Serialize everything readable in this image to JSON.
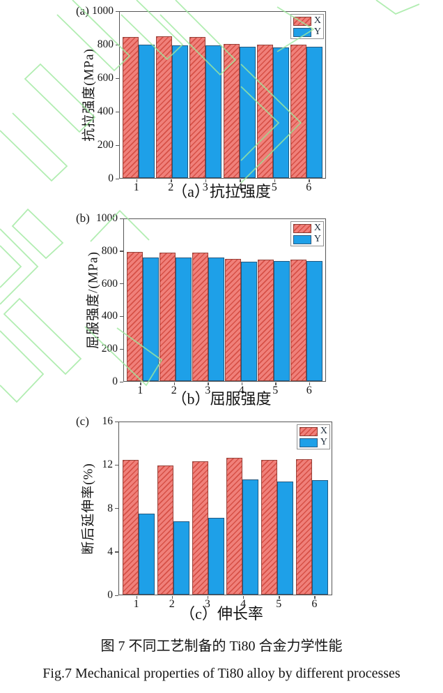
{
  "figure": {
    "caption_cn": "图 7 不同工艺制备的 Ti80 合金力学性能",
    "caption_en": "Fig.7 Mechanical properties of Ti80 alloy by different processes"
  },
  "colors": {
    "series_x_fill": "#f0807a",
    "series_x_hatch": "#d65046",
    "series_y_fill": "#1ea0e8",
    "axis_color": "#565656",
    "text_color": "#141414",
    "watermark_green": "#9ee89e"
  },
  "chart_data": [
    {
      "type": "bar",
      "panel_label": "(a)",
      "subcaption": "（a）抗拉强度",
      "ylabel": "抗拉强度(MPa)",
      "xlabel": "",
      "ylim": [
        0,
        1000
      ],
      "yticks": [
        0,
        200,
        400,
        600,
        800,
        1000
      ],
      "categories": [
        "1",
        "2",
        "3",
        "4",
        "5",
        "6"
      ],
      "grid": false,
      "legend_position": "top-right",
      "legend": [
        "X",
        "Y"
      ],
      "series": [
        {
          "name": "X",
          "values": [
            849,
            852,
            847,
            805,
            802,
            802
          ]
        },
        {
          "name": "Y",
          "values": [
            801,
            800,
            797,
            789,
            787,
            788
          ]
        }
      ]
    },
    {
      "type": "bar",
      "panel_label": "(b)",
      "subcaption": "（b）屈服强度",
      "ylabel": "屈服强度/(MPa)",
      "xlabel": "",
      "ylim": [
        0,
        1000
      ],
      "yticks": [
        0,
        200,
        400,
        600,
        800,
        1000
      ],
      "categories": [
        "1",
        "2",
        "3",
        "4",
        "5",
        "6"
      ],
      "grid": false,
      "legend_position": "top-right",
      "legend": [
        "X",
        "Y"
      ],
      "series": [
        {
          "name": "X",
          "values": [
            796,
            792,
            795,
            754,
            751,
            749
          ]
        },
        {
          "name": "Y",
          "values": [
            765,
            762,
            764,
            738,
            741,
            742
          ]
        }
      ]
    },
    {
      "type": "bar",
      "panel_label": "(c)",
      "subcaption": "（c）伸长率",
      "ylabel": "断后延伸率(%)",
      "xlabel": "",
      "ylim": [
        0,
        16
      ],
      "yticks": [
        0,
        4,
        8,
        12,
        16
      ],
      "categories": [
        "1",
        "2",
        "3",
        "4",
        "5",
        "6"
      ],
      "grid": false,
      "legend_position": "top-right",
      "legend": [
        "X",
        "Y"
      ],
      "series": [
        {
          "name": "X",
          "values": [
            12.5,
            12.0,
            12.4,
            12.7,
            12.5,
            12.6
          ]
        },
        {
          "name": "Y",
          "values": [
            7.5,
            6.8,
            7.1,
            10.7,
            10.5,
            10.6
          ]
        }
      ]
    }
  ]
}
